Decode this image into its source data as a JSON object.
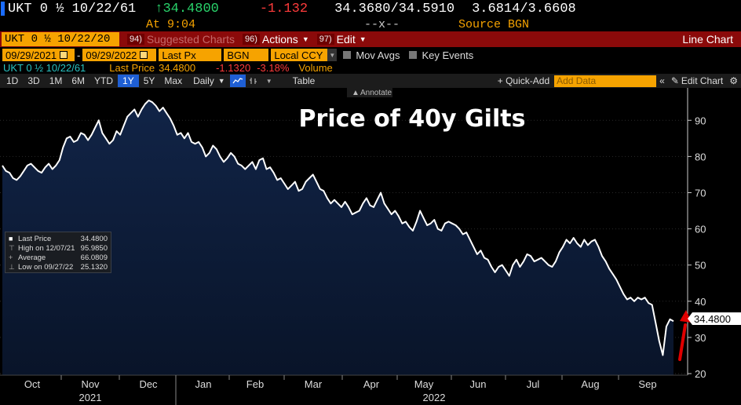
{
  "header": {
    "ticker": "UKT 0 ½ 10/22/61",
    "last_price": "34.4800",
    "change": "-1.132",
    "bid_ask": "34.3680/34.5910",
    "yield_pair": "3.6814/3.6608",
    "time": "At 9:04",
    "volume_placeholder": "--x--",
    "source": "Source BGN"
  },
  "menubar": {
    "security": "UKT 0 ½ 10/22/20",
    "suggested_num": "94)",
    "suggested_label": "Suggested Charts",
    "actions_num": "96)",
    "actions_label": "Actions",
    "edit_num": "97)",
    "edit_label": "Edit",
    "chart_type": "Line Chart"
  },
  "params": {
    "start_date": "09/29/2021",
    "end_date": "09/29/2022",
    "field": "Last Px",
    "source": "BGN",
    "currency": "Local CCY",
    "mov_avgs": "Mov Avgs",
    "key_events": "Key Events"
  },
  "legend_row": {
    "ticker": "UKT 0 ½ 10/22/61",
    "last_price_label": "Last Price",
    "last_price": "34.4800",
    "change": "-1.1320",
    "change_pct": "-3.18%",
    "volume": "Volume"
  },
  "toolbar": {
    "periods": [
      "1D",
      "3D",
      "1M",
      "6M",
      "YTD",
      "1Y",
      "5Y",
      "Max"
    ],
    "active_period": "1Y",
    "frequency": "Daily",
    "table": "Table",
    "quick_add": "+ Quick-Add",
    "add_data_placeholder": "Add Data",
    "edit_chart": "Edit Chart",
    "annotate": "Annotate"
  },
  "stats": {
    "last_label": "Last Price",
    "last_value": "34.4800",
    "high_label": "High on 12/07/21",
    "high_value": "95.9850",
    "avg_label": "Average",
    "avg_value": "66.0809",
    "low_label": "Low on 09/27/22",
    "low_value": "25.1320"
  },
  "colors": {
    "accent": "#f6a300",
    "menu_red": "#8b0a0a",
    "positive": "#29d36b",
    "negative": "#ff3b3b",
    "active_blue": "#1f5fd4",
    "area_fill": "#0e1f3c",
    "arrow": "#e00000"
  },
  "chart_data": {
    "type": "area",
    "title": "Price of 40y Gilts",
    "xlabel": "",
    "ylabel": "",
    "ylim": [
      20,
      97
    ],
    "yticks": [
      20,
      30,
      40,
      50,
      60,
      70,
      80,
      90
    ],
    "month_ticks": [
      "Oct",
      "Nov",
      "Dec",
      "Jan",
      "Feb",
      "Mar",
      "Apr",
      "May",
      "Jun",
      "Jul",
      "Aug",
      "Sep"
    ],
    "year_ticks": [
      "2021",
      "2022"
    ],
    "last_value_label": "34.4800",
    "grid": true,
    "series": [
      {
        "name": "Last Price",
        "values": [
          77.5,
          76,
          75.5,
          74,
          73.5,
          74.5,
          76,
          77.5,
          78,
          77,
          76,
          75.5,
          77,
          78,
          76.5,
          77.5,
          79,
          82.5,
          85,
          85.5,
          84,
          84.5,
          86.5,
          86,
          84.5,
          86,
          88,
          90,
          86.5,
          85,
          83.5,
          84.5,
          87,
          86,
          88.5,
          91,
          92,
          93,
          91,
          93,
          94.5,
          95.5,
          95,
          94,
          92.5,
          93.5,
          92,
          90.5,
          88.5,
          86,
          86.5,
          85,
          86.5,
          84,
          83.5,
          84,
          82.5,
          80,
          81,
          83,
          82,
          80,
          78.5,
          79.5,
          81,
          80,
          78,
          77.5,
          76.5,
          77.5,
          78.5,
          76.5,
          79,
          79.5,
          76.5,
          77,
          75.5,
          73.5,
          74,
          72.5,
          71,
          72,
          73,
          70.5,
          71,
          73,
          74,
          75,
          73,
          71,
          70.5,
          68.5,
          67,
          68,
          67,
          66,
          67.5,
          66,
          64,
          64.5,
          65,
          67,
          68.5,
          66.5,
          66,
          68,
          70,
          67,
          65.5,
          64,
          65,
          63.5,
          61.5,
          62,
          60.5,
          59.5,
          62,
          65,
          63,
          61,
          61.5,
          62.5,
          60,
          59.5,
          61.5,
          62,
          61.5,
          61,
          60,
          58.5,
          59,
          57,
          55,
          53,
          54,
          52,
          51.5,
          49.5,
          48,
          49.5,
          50,
          48.5,
          47,
          50,
          51.5,
          49.5,
          51,
          53,
          52.5,
          51,
          51.5,
          52,
          51,
          50,
          49.5,
          51,
          53.5,
          55,
          57,
          56,
          57.5,
          56,
          55,
          57,
          55.5,
          56.5,
          57,
          55,
          52.5,
          51,
          49,
          47.5,
          46,
          44,
          42,
          40.5,
          41,
          40,
          41,
          40.5,
          41,
          39.5,
          39,
          34,
          29,
          25.1,
          33,
          35,
          34.48
        ]
      }
    ]
  }
}
